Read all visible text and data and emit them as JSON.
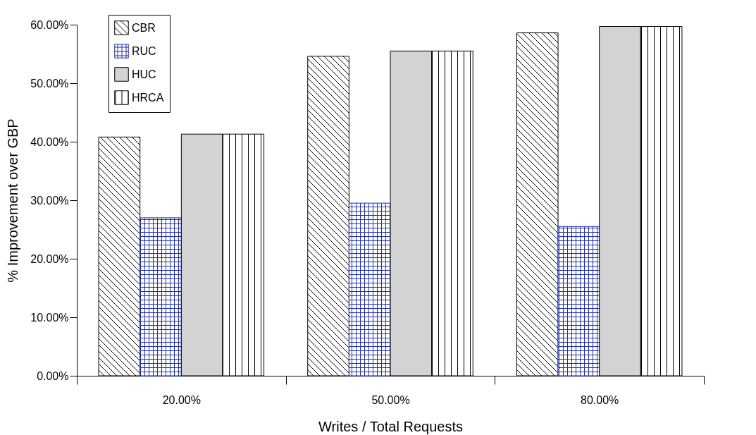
{
  "chart_data": {
    "type": "bar",
    "xlabel": "Writes / Total Requests",
    "ylabel": "% Improvement over GBP",
    "categories": [
      "20.00%",
      "50.00%",
      "80.00%"
    ],
    "series": [
      {
        "name": "CBR",
        "color": "#000000",
        "values": [
          40.8,
          54.6,
          58.6
        ]
      },
      {
        "name": "RUC",
        "color": "#1f2fa8",
        "values": [
          27.0,
          29.5,
          25.5
        ]
      },
      {
        "name": "HUC",
        "color": "#d3d3d3",
        "values": [
          41.3,
          55.5,
          59.7
        ]
      },
      {
        "name": "HRCA",
        "color": "#000000",
        "values": [
          41.3,
          55.5,
          59.7
        ]
      }
    ],
    "ylim": [
      0,
      60
    ],
    "yticks": [
      {
        "value": 0,
        "label": "0.00%"
      },
      {
        "value": 10,
        "label": "10.00%"
      },
      {
        "value": 20,
        "label": "20.00%"
      },
      {
        "value": 30,
        "label": "30.00%"
      },
      {
        "value": 40,
        "label": "40.00%"
      },
      {
        "value": 50,
        "label": "50.00%"
      },
      {
        "value": 60,
        "label": "60.00%"
      }
    ],
    "grid": false,
    "legend": "top left"
  }
}
